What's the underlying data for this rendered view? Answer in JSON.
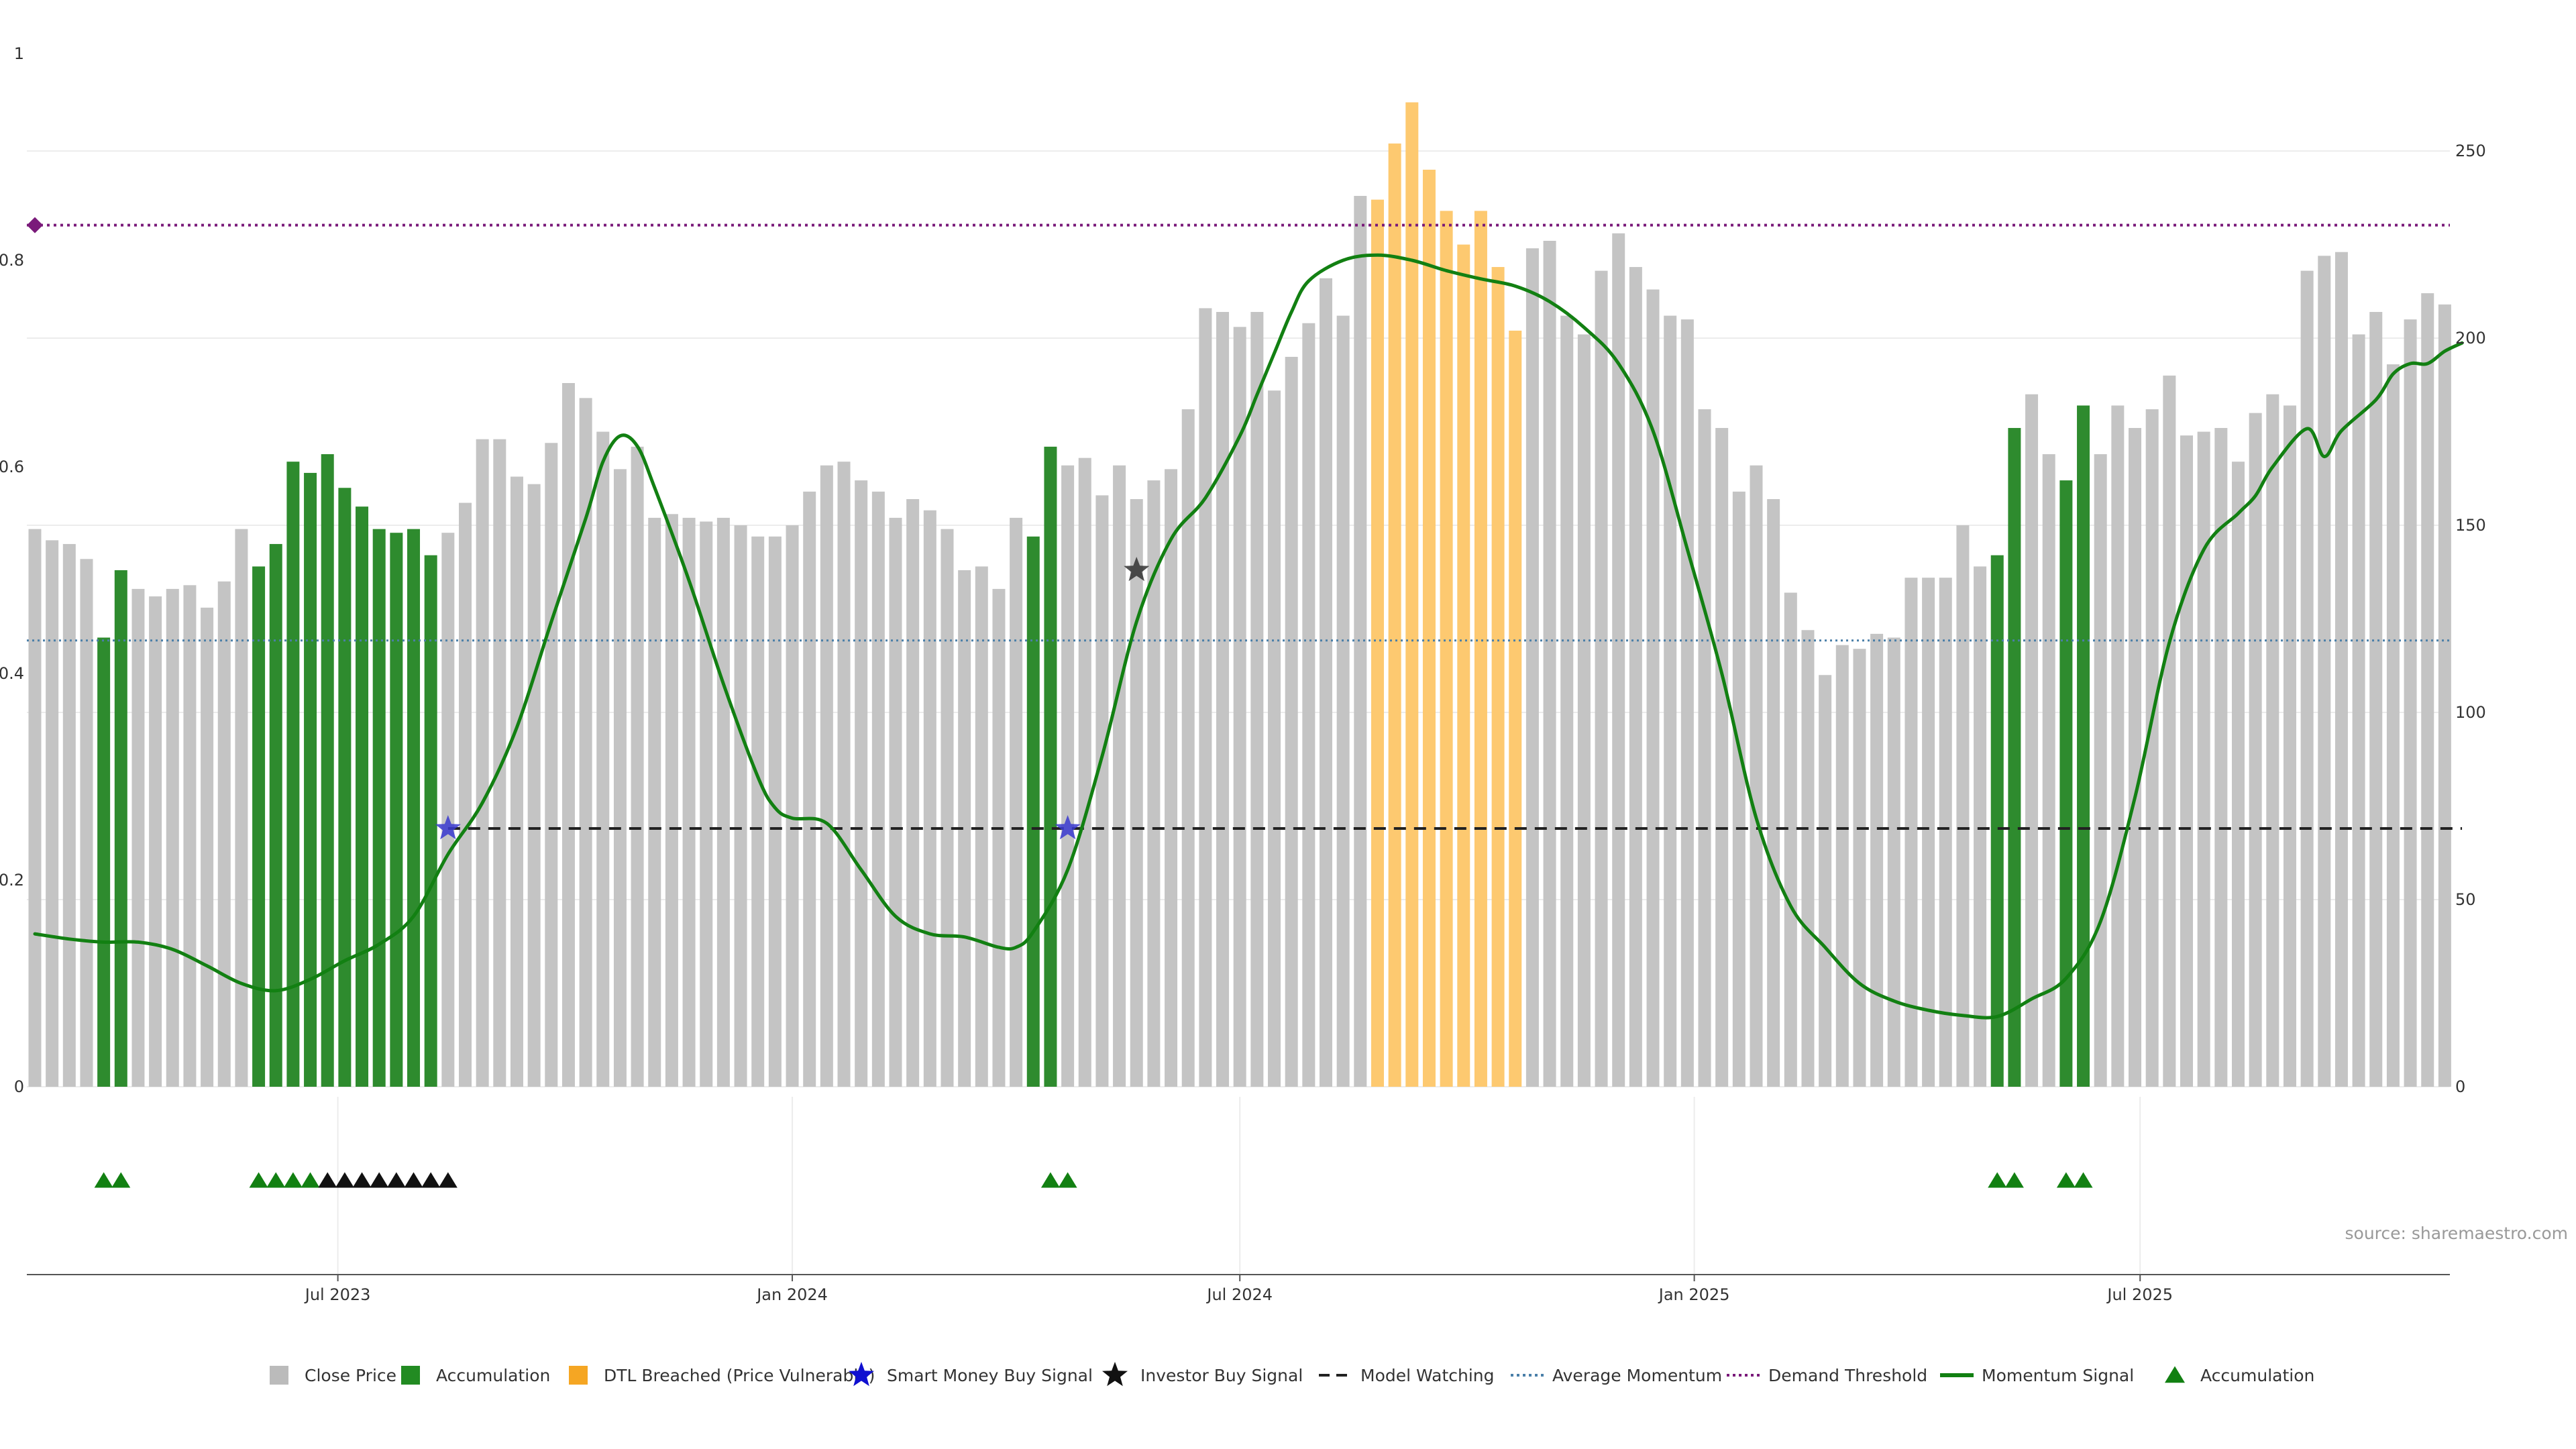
{
  "chart_data": {
    "type": "bar",
    "source": "source: sharemaestro.com",
    "left_axis": {
      "ticks": [
        "0",
        "0.2",
        "0.4",
        "0.6",
        "0.8",
        "1"
      ],
      "range": [
        0,
        1
      ]
    },
    "right_axis": {
      "ticks": [
        "0",
        "50",
        "100",
        "150",
        "200",
        "250"
      ],
      "range": [
        0,
        276
      ]
    },
    "x_axis": {
      "ticks": [
        {
          "label": "Jul 2023",
          "index": 17.6
        },
        {
          "label": "Jan 2024",
          "index": 44
        },
        {
          "label": "Jul 2024",
          "index": 70
        },
        {
          "label": "Jan 2025",
          "index": 96.4
        },
        {
          "label": "Jul 2025",
          "index": 122.3
        }
      ]
    },
    "close_price": [
      149,
      146,
      145,
      141,
      120,
      138,
      133,
      131,
      133,
      134,
      128,
      135,
      149,
      139,
      145,
      167,
      164,
      169,
      160,
      155,
      149,
      148,
      149,
      142,
      148,
      156,
      173,
      173,
      163,
      161,
      172,
      188,
      184,
      175,
      165,
      171,
      152,
      153,
      152,
      151,
      152,
      150,
      147,
      147,
      150,
      159,
      166,
      167,
      162,
      159,
      152,
      157,
      154,
      149,
      138,
      139,
      133,
      152,
      147,
      171,
      166,
      168,
      158,
      166,
      157,
      162,
      165,
      181,
      208,
      207,
      203,
      207,
      186,
      195,
      204,
      216,
      206,
      238,
      237,
      252,
      263,
      245,
      234,
      225,
      234,
      219,
      202,
      224,
      226,
      206,
      201,
      218,
      228,
      219,
      213,
      206,
      205,
      181,
      176,
      159,
      166,
      157,
      132,
      122,
      110,
      118,
      117,
      121,
      120,
      136,
      136,
      136,
      150,
      139,
      142,
      176,
      185,
      169,
      162,
      182,
      169,
      182,
      176,
      181,
      190,
      174,
      175,
      176,
      167,
      180,
      185,
      182,
      218,
      222,
      223,
      201,
      207,
      193,
      205,
      212,
      209
    ],
    "category": [
      0,
      0,
      0,
      0,
      1,
      1,
      0,
      0,
      0,
      0,
      0,
      0,
      0,
      1,
      1,
      1,
      1,
      1,
      1,
      1,
      1,
      1,
      1,
      1,
      0,
      0,
      0,
      0,
      0,
      0,
      0,
      0,
      0,
      0,
      0,
      0,
      0,
      0,
      0,
      0,
      0,
      0,
      0,
      0,
      0,
      0,
      0,
      0,
      0,
      0,
      0,
      0,
      0,
      0,
      0,
      0,
      0,
      0,
      1,
      1,
      0,
      0,
      0,
      0,
      0,
      0,
      0,
      0,
      0,
      0,
      0,
      0,
      0,
      0,
      0,
      0,
      0,
      0,
      2,
      2,
      2,
      2,
      2,
      2,
      2,
      2,
      2,
      0,
      0,
      0,
      0,
      0,
      0,
      0,
      0,
      0,
      0,
      0,
      0,
      0,
      0,
      0,
      0,
      0,
      0,
      0,
      0,
      0,
      0,
      0,
      0,
      0,
      0,
      0,
      1,
      1,
      0,
      0,
      1,
      1,
      0,
      0,
      0,
      0,
      0,
      0,
      0,
      0,
      0,
      0,
      0,
      0,
      0,
      0,
      0,
      0,
      0,
      0,
      0,
      0,
      0
    ],
    "momentum": [
      [
        0,
        0.148
      ],
      [
        2,
        0.143
      ],
      [
        4,
        0.14
      ],
      [
        6,
        0.14
      ],
      [
        8,
        0.133
      ],
      [
        10,
        0.117
      ],
      [
        12,
        0.1
      ],
      [
        14,
        0.093
      ],
      [
        16,
        0.104
      ],
      [
        18,
        0.122
      ],
      [
        20,
        0.138
      ],
      [
        22,
        0.165
      ],
      [
        24,
        0.225
      ],
      [
        26,
        0.275
      ],
      [
        28,
        0.348
      ],
      [
        30,
        0.45
      ],
      [
        32,
        0.55
      ],
      [
        33,
        0.605
      ],
      [
        34,
        0.63
      ],
      [
        35,
        0.62
      ],
      [
        36,
        0.58
      ],
      [
        38,
        0.49
      ],
      [
        40,
        0.39
      ],
      [
        42,
        0.3
      ],
      [
        43,
        0.27
      ],
      [
        44,
        0.26
      ],
      [
        46,
        0.255
      ],
      [
        48,
        0.21
      ],
      [
        50,
        0.165
      ],
      [
        52,
        0.148
      ],
      [
        54,
        0.145
      ],
      [
        56,
        0.135
      ],
      [
        57,
        0.135
      ],
      [
        58,
        0.15
      ],
      [
        60,
        0.21
      ],
      [
        62,
        0.32
      ],
      [
        64,
        0.45
      ],
      [
        66,
        0.53
      ],
      [
        68,
        0.57
      ],
      [
        70,
        0.63
      ],
      [
        71,
        0.67
      ],
      [
        72,
        0.71
      ],
      [
        73,
        0.75
      ],
      [
        74,
        0.78
      ],
      [
        76,
        0.8
      ],
      [
        78,
        0.805
      ],
      [
        80,
        0.8
      ],
      [
        82,
        0.79
      ],
      [
        84,
        0.782
      ],
      [
        86,
        0.775
      ],
      [
        88,
        0.76
      ],
      [
        90,
        0.735
      ],
      [
        92,
        0.7
      ],
      [
        94,
        0.635
      ],
      [
        96,
        0.52
      ],
      [
        98,
        0.4
      ],
      [
        100,
        0.26
      ],
      [
        102,
        0.175
      ],
      [
        104,
        0.135
      ],
      [
        106,
        0.1
      ],
      [
        108,
        0.083
      ],
      [
        110,
        0.074
      ],
      [
        112,
        0.069
      ],
      [
        114,
        0.068
      ],
      [
        116,
        0.085
      ],
      [
        118,
        0.105
      ],
      [
        120,
        0.16
      ],
      [
        122,
        0.28
      ],
      [
        124,
        0.43
      ],
      [
        126,
        0.52
      ],
      [
        128,
        0.555
      ],
      [
        129,
        0.572
      ],
      [
        130,
        0.6
      ],
      [
        132,
        0.637
      ],
      [
        133,
        0.61
      ],
      [
        134,
        0.635
      ],
      [
        136,
        0.665
      ],
      [
        137,
        0.69
      ],
      [
        138,
        0.7
      ],
      [
        139,
        0.7
      ],
      [
        140,
        0.712
      ],
      [
        141,
        0.72
      ]
    ],
    "average_momentum": 0.432,
    "demand_threshold": 0.834,
    "model_watching": {
      "value": 0.25,
      "start_index": 24,
      "end_index": 141
    },
    "smart_money_signals": [
      {
        "index": 24,
        "value": 0.25
      },
      {
        "index": 60,
        "value": 0.25
      }
    ],
    "investor_buy_signals": [
      {
        "index": 64,
        "value": 0.5
      }
    ],
    "accumulation_markers": {
      "green": [
        4,
        5,
        13,
        14,
        15,
        16,
        59,
        60,
        114,
        115,
        118,
        119
      ],
      "black": [
        17,
        18,
        19,
        20,
        21,
        22,
        23,
        24
      ]
    },
    "legend": [
      {
        "key": "close",
        "label": "Close Price",
        "color": "#bbbbbb"
      },
      {
        "key": "accum",
        "label": "Accumulation",
        "color": "#228b22"
      },
      {
        "key": "dtl",
        "label": "DTL Breached (Price Vulnerable)",
        "color": "#f5a623"
      },
      {
        "key": "smart",
        "label": "Smart Money Buy Signal",
        "color": "#1010d0"
      },
      {
        "key": "investor",
        "label": "Investor Buy Signal",
        "color": "#111111"
      },
      {
        "key": "watching",
        "label": "Model Watching",
        "color": "#222222"
      },
      {
        "key": "avgmom",
        "label": "Average Momentum",
        "color": "#4a7fa8"
      },
      {
        "key": "demand",
        "label": "Demand Threshold",
        "color": "#7a1a7a"
      },
      {
        "key": "momentum",
        "label": "Momentum Signal",
        "color": "#128012"
      },
      {
        "key": "accumtri",
        "label": "Accumulation",
        "color": "#128012"
      }
    ],
    "colors": {
      "close": "#c4c4c4",
      "accum": "#2e8b2e",
      "dtl": "#fdc970",
      "momentum": "#128012",
      "demand": "#7a1a7a",
      "avg": "#4a7fa8",
      "watching": "#222222",
      "smart": "#3a3ad0",
      "investor": "#333333",
      "grid": "#ececec"
    }
  }
}
